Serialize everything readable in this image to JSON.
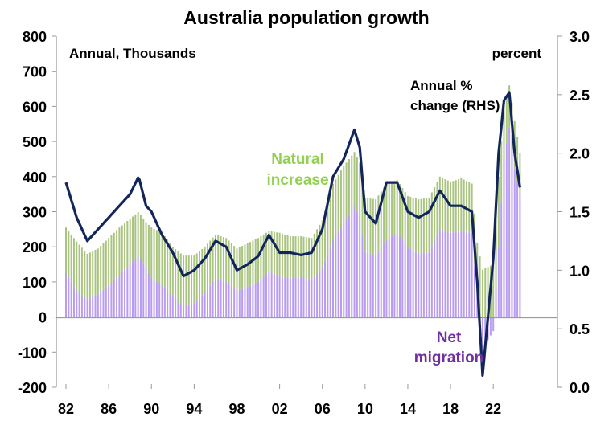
{
  "chart_data": {
    "type": "bar",
    "title": "Australia population growth",
    "left_axis_label": "Annual, Thousands",
    "right_axis_label": "percent",
    "ylim": [
      -200,
      800
    ],
    "yticks": [
      -200,
      -100,
      0,
      100,
      200,
      300,
      400,
      500,
      600,
      700,
      800
    ],
    "y2lim": [
      0.0,
      3.0
    ],
    "y2ticks": [
      "0.0",
      "0.5",
      "1.0",
      "1.5",
      "2.0",
      "2.5",
      "3.0"
    ],
    "xlim": [
      1982,
      2025
    ],
    "xticks": [
      {
        "year": 1982,
        "label": "82"
      },
      {
        "year": 1986,
        "label": "86"
      },
      {
        "year": 1990,
        "label": "90"
      },
      {
        "year": 1994,
        "label": "94"
      },
      {
        "year": 1998,
        "label": "98"
      },
      {
        "year": 2002,
        "label": "02"
      },
      {
        "year": 2006,
        "label": "06"
      },
      {
        "year": 2010,
        "label": "10"
      },
      {
        "year": 2014,
        "label": "14"
      },
      {
        "year": 2018,
        "label": "18"
      },
      {
        "year": 2022,
        "label": "22"
      }
    ],
    "grid": false,
    "annotations": {
      "natural": [
        "Natural",
        "increase"
      ],
      "migration": [
        "Net",
        "migration"
      ],
      "line": [
        "Annual %",
        "change (RHS)"
      ]
    },
    "colors": {
      "natural": "#a9c47f",
      "migration": "#b99cf0",
      "line": "#13265c",
      "natural_text": "#92d050",
      "migration_text": "#7030a0"
    },
    "x": [
      1982,
      1983,
      1984,
      1985,
      1986,
      1987,
      1988,
      1988.8,
      1989.5,
      1990,
      1991,
      1992,
      1993,
      1994,
      1995,
      1996,
      1997,
      1998,
      1999,
      2000,
      2001,
      2002,
      2003,
      2004,
      2005,
      2006,
      2007,
      2008,
      2009,
      2009.5,
      2010,
      2011,
      2012,
      2013,
      2014,
      2015,
      2016,
      2017,
      2018,
      2019,
      2020,
      2020.5,
      2021,
      2022,
      2022.5,
      2023,
      2023.5,
      2024,
      2024.6
    ],
    "series": [
      {
        "name": "Net migration",
        "axis": "left",
        "kind": "bar",
        "values": [
          125,
          75,
          50,
          65,
          90,
          120,
          150,
          175,
          140,
          110,
          90,
          60,
          30,
          40,
          70,
          110,
          100,
          75,
          85,
          100,
          130,
          115,
          110,
          115,
          105,
          140,
          220,
          270,
          315,
          280,
          185,
          175,
          220,
          240,
          200,
          180,
          185,
          250,
          240,
          245,
          240,
          60,
          -90,
          -40,
          200,
          450,
          540,
          420,
          340
        ]
      },
      {
        "name": "Natural increase",
        "axis": "left",
        "kind": "bar",
        "stacked_total": true,
        "values": [
          255,
          215,
          180,
          195,
          225,
          255,
          280,
          300,
          270,
          255,
          240,
          200,
          175,
          175,
          200,
          235,
          225,
          195,
          210,
          225,
          245,
          240,
          230,
          230,
          225,
          275,
          380,
          430,
          470,
          440,
          340,
          335,
          380,
          390,
          345,
          335,
          340,
          400,
          385,
          395,
          380,
          210,
          135,
          150,
          400,
          600,
          660,
          560,
          450
        ]
      },
      {
        "name": "Annual % change (RHS)",
        "axis": "right",
        "kind": "line",
        "values": [
          1.75,
          1.45,
          1.25,
          1.35,
          1.45,
          1.55,
          1.65,
          1.8,
          1.55,
          1.5,
          1.3,
          1.15,
          0.95,
          1.0,
          1.1,
          1.25,
          1.2,
          1.0,
          1.05,
          1.12,
          1.3,
          1.15,
          1.15,
          1.13,
          1.15,
          1.35,
          1.8,
          1.95,
          2.2,
          2.05,
          1.5,
          1.4,
          1.75,
          1.75,
          1.5,
          1.45,
          1.5,
          1.68,
          1.55,
          1.55,
          1.5,
          0.9,
          0.1,
          1.1,
          2.0,
          2.45,
          2.52,
          2.0,
          1.65
        ]
      }
    ]
  }
}
